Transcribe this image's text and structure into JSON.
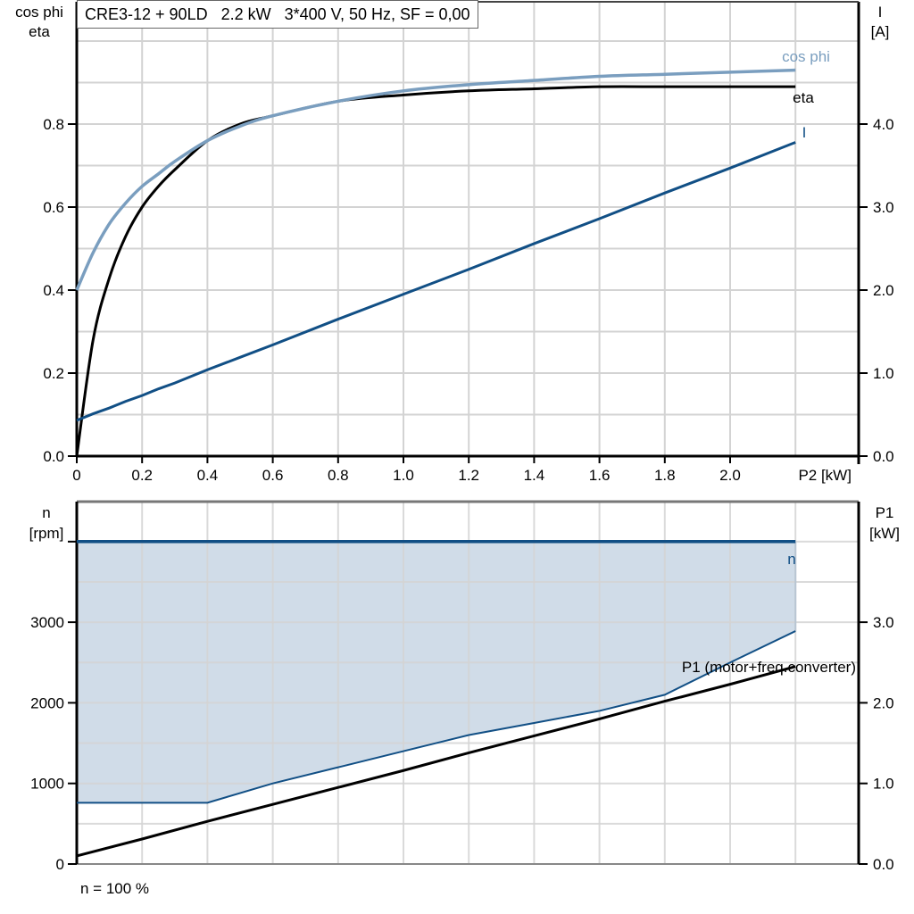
{
  "title": "CRE3-12 + 90LD   2.2 kW   3*400 V, 50 Hz, SF = 0,00",
  "colors": {
    "cos_phi": "#7a9ebf",
    "eta": "#000000",
    "current": "#114f85",
    "speed": "#114f85",
    "p1_limit": "#114f85",
    "p1": "#000000",
    "fill": "#d0dce8",
    "grid": "#d3d3d3"
  },
  "top_chart": {
    "left_axis_title_line1": "cos phi",
    "left_axis_title_line2": "eta",
    "right_axis_title_line1": "I",
    "right_axis_title_line2": "[A]",
    "x_axis_title": "P2 [kW]",
    "x_ticks": [
      "0",
      "0.2",
      "0.4",
      "0.6",
      "0.8",
      "1.0",
      "1.2",
      "1.4",
      "1.6",
      "1.8",
      "2.0"
    ],
    "left_ticks": [
      "0.0",
      "0.2",
      "0.4",
      "0.6",
      "0.8"
    ],
    "right_ticks": [
      "0.0",
      "1.0",
      "2.0",
      "3.0",
      "4.0"
    ],
    "labels": {
      "cos_phi": "cos phi",
      "eta": "eta",
      "current": "I"
    }
  },
  "bottom_chart": {
    "left_axis_title_line1": "n",
    "left_axis_title_line2": "[rpm]",
    "right_axis_title_line1": "P1",
    "right_axis_title_line2": "[kW]",
    "left_ticks": [
      "0",
      "1000",
      "2000",
      "3000"
    ],
    "right_ticks": [
      "0.0",
      "1.0",
      "2.0",
      "3.0"
    ],
    "labels": {
      "speed": "n",
      "p1": "P1 (motor+freq.converter)"
    },
    "footnote": "n = 100 %"
  },
  "chart_data": [
    {
      "type": "line",
      "title": "CRE3-12 + 90LD   2.2 kW   3*400 V, 50 Hz, SF = 0,00",
      "xlabel": "P2 [kW]",
      "ylabel": "cos phi / eta",
      "ylabel_right": "I [A]",
      "xlim": [
        0,
        2.4
      ],
      "ylim": [
        0,
        1.1
      ],
      "ylim_right": [
        0,
        5.5
      ],
      "grid": true,
      "x": [
        0,
        0.05,
        0.1,
        0.15,
        0.2,
        0.25,
        0.3,
        0.4,
        0.5,
        0.6,
        0.8,
        1.0,
        1.2,
        1.4,
        1.6,
        1.8,
        2.0,
        2.2
      ],
      "series": [
        {
          "name": "cos phi",
          "axis": "left",
          "values": [
            0.4,
            0.49,
            0.56,
            0.61,
            0.65,
            0.68,
            0.71,
            0.76,
            0.795,
            0.82,
            0.855,
            0.88,
            0.895,
            0.905,
            0.915,
            0.92,
            0.925,
            0.93
          ]
        },
        {
          "name": "eta",
          "axis": "left",
          "values": [
            0.0,
            0.28,
            0.43,
            0.53,
            0.6,
            0.65,
            0.69,
            0.76,
            0.8,
            0.82,
            0.855,
            0.87,
            0.88,
            0.885,
            0.89,
            0.89,
            0.89,
            0.89
          ]
        },
        {
          "name": "I",
          "axis": "right",
          "values": [
            0.43,
            0.51,
            0.58,
            0.66,
            0.73,
            0.81,
            0.88,
            1.04,
            1.19,
            1.34,
            1.65,
            1.95,
            2.25,
            2.56,
            2.86,
            3.17,
            3.47,
            3.78
          ]
        }
      ]
    },
    {
      "type": "line",
      "xlabel": "P2 [kW]",
      "ylabel": "n [rpm]",
      "ylabel_right": "P1 [kW]",
      "xlim": [
        0,
        2.4
      ],
      "ylim": [
        0,
        4500
      ],
      "ylim_right": [
        0,
        4.5
      ],
      "grid": true,
      "x": [
        0,
        0.2,
        0.4,
        0.6,
        0.8,
        1.0,
        1.2,
        1.4,
        1.6,
        1.8,
        2.0,
        2.2
      ],
      "series": [
        {
          "name": "n",
          "axis": "left",
          "values": [
            4000,
            4000,
            4000,
            4000,
            4000,
            4000,
            4000,
            4000,
            4000,
            4000,
            4000,
            4000
          ]
        },
        {
          "name": "P1 limit (upper edge of shaded area)",
          "axis": "right",
          "values": [
            0.76,
            0.76,
            0.76,
            1.0,
            1.2,
            1.4,
            1.6,
            1.75,
            1.9,
            2.1,
            2.5,
            2.89
          ]
        },
        {
          "name": "P1 (motor+freq.converter)",
          "axis": "right",
          "values": [
            0.1,
            0.31,
            0.53,
            0.74,
            0.95,
            1.16,
            1.38,
            1.59,
            1.8,
            2.02,
            2.23,
            2.45
          ]
        }
      ],
      "annotations": [
        "n = 100 %"
      ]
    }
  ]
}
